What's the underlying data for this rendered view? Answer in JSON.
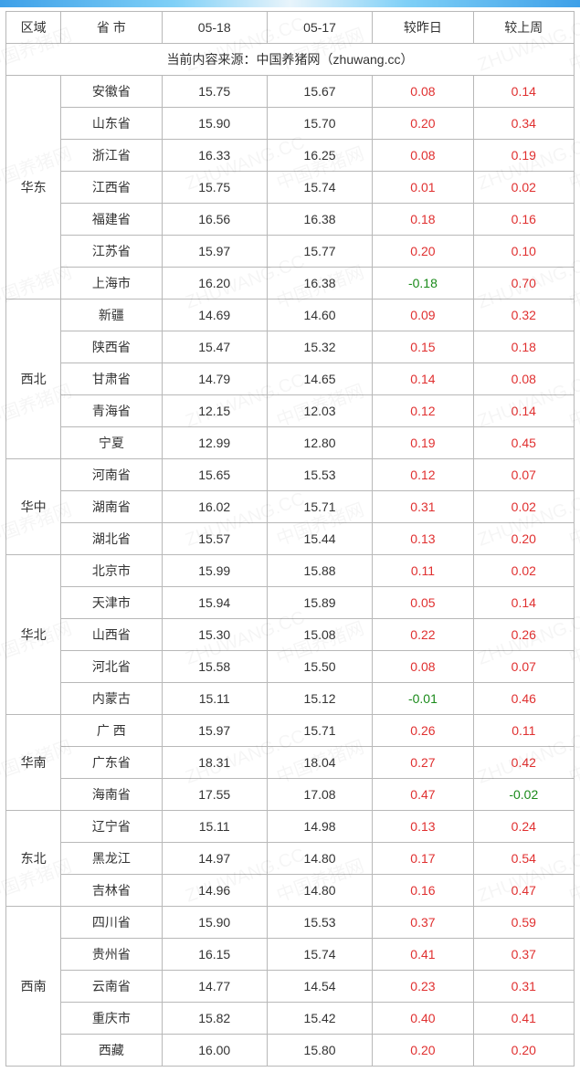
{
  "header_band_gradient": [
    "#3ea0e8",
    "#7fd0f7",
    "#e8f4fb",
    "#7fd0f7",
    "#3ea0e8"
  ],
  "columns": {
    "region": "区域",
    "province": "省 市",
    "d1": "05-18",
    "d2": "05-17",
    "vs_yesterday": "较昨日",
    "vs_lastweek": "较上周"
  },
  "source_text": "当前内容来源：中国养猪网（zhuwang.cc）",
  "watermark_text_cn": "中国养猪网",
  "watermark_text_en": "ZHUWANG.CC",
  "value_colors": {
    "positive": "#e03030",
    "negative": "#1a8a1a",
    "neutral": "#333333"
  },
  "border_color": "#b8b8b8",
  "font_family": "Microsoft YaHei, SimSun, Arial, sans-serif",
  "font_size_pt": 11,
  "regions": [
    {
      "name": "华东",
      "rows": [
        {
          "province": "安徽省",
          "d1": "15.75",
          "d2": "15.67",
          "dy": "0.08",
          "dw": "0.14"
        },
        {
          "province": "山东省",
          "d1": "15.90",
          "d2": "15.70",
          "dy": "0.20",
          "dw": "0.34"
        },
        {
          "province": "浙江省",
          "d1": "16.33",
          "d2": "16.25",
          "dy": "0.08",
          "dw": "0.19"
        },
        {
          "province": "江西省",
          "d1": "15.75",
          "d2": "15.74",
          "dy": "0.01",
          "dw": "0.02"
        },
        {
          "province": "福建省",
          "d1": "16.56",
          "d2": "16.38",
          "dy": "0.18",
          "dw": "0.16"
        },
        {
          "province": "江苏省",
          "d1": "15.97",
          "d2": "15.77",
          "dy": "0.20",
          "dw": "0.10"
        },
        {
          "province": "上海市",
          "d1": "16.20",
          "d2": "16.38",
          "dy": "-0.18",
          "dw": "0.70"
        }
      ]
    },
    {
      "name": "西北",
      "rows": [
        {
          "province": "新疆",
          "d1": "14.69",
          "d2": "14.60",
          "dy": "0.09",
          "dw": "0.32"
        },
        {
          "province": "陕西省",
          "d1": "15.47",
          "d2": "15.32",
          "dy": "0.15",
          "dw": "0.18"
        },
        {
          "province": "甘肃省",
          "d1": "14.79",
          "d2": "14.65",
          "dy": "0.14",
          "dw": "0.08"
        },
        {
          "province": "青海省",
          "d1": "12.15",
          "d2": "12.03",
          "dy": "0.12",
          "dw": "0.14"
        },
        {
          "province": "宁夏",
          "d1": "12.99",
          "d2": "12.80",
          "dy": "0.19",
          "dw": "0.45"
        }
      ]
    },
    {
      "name": "华中",
      "rows": [
        {
          "province": "河南省",
          "d1": "15.65",
          "d2": "15.53",
          "dy": "0.12",
          "dw": "0.07"
        },
        {
          "province": "湖南省",
          "d1": "16.02",
          "d2": "15.71",
          "dy": "0.31",
          "dw": "0.02"
        },
        {
          "province": "湖北省",
          "d1": "15.57",
          "d2": "15.44",
          "dy": "0.13",
          "dw": "0.20"
        }
      ]
    },
    {
      "name": "华北",
      "rows": [
        {
          "province": "北京市",
          "d1": "15.99",
          "d2": "15.88",
          "dy": "0.11",
          "dw": "0.02"
        },
        {
          "province": "天津市",
          "d1": "15.94",
          "d2": "15.89",
          "dy": "0.05",
          "dw": "0.14"
        },
        {
          "province": "山西省",
          "d1": "15.30",
          "d2": "15.08",
          "dy": "0.22",
          "dw": "0.26"
        },
        {
          "province": "河北省",
          "d1": "15.58",
          "d2": "15.50",
          "dy": "0.08",
          "dw": "0.07"
        },
        {
          "province": "内蒙古",
          "d1": "15.11",
          "d2": "15.12",
          "dy": "-0.01",
          "dw": "0.46"
        }
      ]
    },
    {
      "name": "华南",
      "rows": [
        {
          "province": "广 西",
          "d1": "15.97",
          "d2": "15.71",
          "dy": "0.26",
          "dw": "0.11"
        },
        {
          "province": "广东省",
          "d1": "18.31",
          "d2": "18.04",
          "dy": "0.27",
          "dw": "0.42"
        },
        {
          "province": "海南省",
          "d1": "17.55",
          "d2": "17.08",
          "dy": "0.47",
          "dw": "-0.02"
        }
      ]
    },
    {
      "name": "东北",
      "rows": [
        {
          "province": "辽宁省",
          "d1": "15.11",
          "d2": "14.98",
          "dy": "0.13",
          "dw": "0.24"
        },
        {
          "province": "黑龙江",
          "d1": "14.97",
          "d2": "14.80",
          "dy": "0.17",
          "dw": "0.54"
        },
        {
          "province": "吉林省",
          "d1": "14.96",
          "d2": "14.80",
          "dy": "0.16",
          "dw": "0.47"
        }
      ]
    },
    {
      "name": "西南",
      "rows": [
        {
          "province": "四川省",
          "d1": "15.90",
          "d2": "15.53",
          "dy": "0.37",
          "dw": "0.59"
        },
        {
          "province": "贵州省",
          "d1": "16.15",
          "d2": "15.74",
          "dy": "0.41",
          "dw": "0.37"
        },
        {
          "province": "云南省",
          "d1": "14.77",
          "d2": "14.54",
          "dy": "0.23",
          "dw": "0.31"
        },
        {
          "province": "重庆市",
          "d1": "15.82",
          "d2": "15.42",
          "dy": "0.40",
          "dw": "0.41"
        },
        {
          "province": "西藏",
          "d1": "16.00",
          "d2": "15.80",
          "dy": "0.20",
          "dw": "0.20"
        }
      ]
    }
  ]
}
